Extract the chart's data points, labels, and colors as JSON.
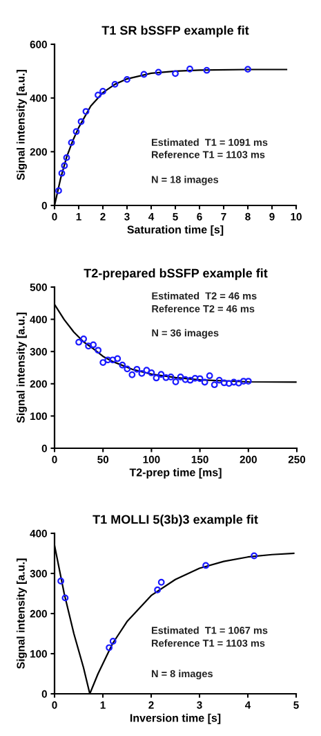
{
  "chart_data": [
    {
      "type": "scatter",
      "title": "T1 SR bSSFP example fit",
      "xlabel": "Saturation time [s]",
      "ylabel": "Signal intensity [a.u.]",
      "xlim": [
        0,
        10
      ],
      "ylim": [
        0,
        600
      ],
      "xticks": [
        0,
        1,
        2,
        3,
        4,
        5,
        6,
        7,
        8,
        9,
        10
      ],
      "yticks": [
        0,
        200,
        400,
        600
      ],
      "grid": false,
      "marker": "circle",
      "annotations": [
        "Estimated  T1 = 1091 ms",
        "Reference T1 = 1103 ms",
        "N = 18 images"
      ],
      "series": [
        {
          "color": "#1a1aff",
          "x": [
            0.17,
            0.3,
            0.41,
            0.5,
            0.7,
            0.9,
            1.1,
            1.3,
            1.8,
            2.0,
            2.5,
            3.0,
            3.7,
            4.3,
            5.0,
            5.6,
            6.3,
            8.0
          ],
          "values": [
            55,
            120,
            148,
            178,
            234,
            275,
            312,
            350,
            411,
            425,
            451,
            469,
            488,
            496,
            491,
            508,
            503,
            507
          ]
        },
        {
          "type": "line",
          "color": "#000000",
          "marker": "none",
          "line_style": "solid",
          "x": [
            0,
            0.25,
            0.5,
            0.75,
            1,
            1.5,
            2,
            2.5,
            3,
            4,
            5,
            6,
            8,
            9.6
          ],
          "values": [
            0,
            100,
            180,
            240,
            290,
            370,
            420,
            451,
            471,
            492,
            500,
            504,
            506,
            506
          ]
        }
      ]
    },
    {
      "type": "scatter",
      "title": "T2-prepared bSSFP example fit",
      "xlabel": "T2-prep time [ms]",
      "ylabel": "Signal intensity [a.u.]",
      "xlim": [
        0,
        250
      ],
      "ylim": [
        0,
        500
      ],
      "xticks": [
        0,
        50,
        100,
        150,
        200,
        250
      ],
      "yticks": [
        0,
        100,
        200,
        300,
        400,
        500
      ],
      "grid": false,
      "marker": "circle",
      "annotations": [
        "Estimated  T2 = 46 ms",
        "Reference T2 = 46 ms",
        "N = 36 images"
      ],
      "series": [
        {
          "color": "#1a1aff",
          "x": [
            25,
            30,
            35,
            40,
            45,
            50,
            55,
            60,
            65,
            70,
            75,
            80,
            85,
            90,
            95,
            100,
            105,
            110,
            115,
            120,
            125,
            130,
            135,
            140,
            145,
            150,
            155,
            160,
            165,
            170,
            175,
            180,
            185,
            190,
            195,
            200
          ],
          "values": [
            329,
            339,
            317,
            321,
            304,
            266,
            274,
            274,
            278,
            258,
            246,
            228,
            245,
            232,
            242,
            234,
            218,
            229,
            219,
            221,
            206,
            221,
            213,
            211,
            217,
            216,
            205,
            225,
            197,
            211,
            203,
            201,
            205,
            202,
            208,
            208
          ]
        },
        {
          "type": "line",
          "color": "#000000",
          "marker": "none",
          "line_style": "solid",
          "x": [
            0,
            10,
            20,
            30,
            40,
            50,
            60,
            80,
            100,
            125,
            150,
            200,
            249
          ],
          "values": [
            446,
            399,
            360,
            330,
            309,
            285,
            269,
            245,
            230,
            219,
            212,
            206,
            205
          ]
        }
      ]
    },
    {
      "type": "scatter",
      "title": "T1 MOLLI 5(3b)3 example fit",
      "xlabel": "Inversion time [s]",
      "ylabel": "Signal intensity [a.u.]",
      "xlim": [
        0,
        5
      ],
      "ylim": [
        0,
        400
      ],
      "xticks": [
        0,
        1,
        2,
        3,
        4,
        5
      ],
      "yticks": [
        0,
        100,
        200,
        300,
        400
      ],
      "grid": false,
      "marker": "circle",
      "annotations": [
        "Estimated  T1 = 1067 ms",
        "Reference T1 = 1103 ms",
        "N = 8 images"
      ],
      "series": [
        {
          "color": "#1a1aff",
          "x": [
            0.13,
            0.22,
            1.13,
            1.21,
            2.13,
            2.21,
            3.13,
            4.13
          ],
          "values": [
            281,
            239,
            115,
            131,
            259,
            278,
            320,
            344
          ]
        },
        {
          "type": "line",
          "color": "#000000",
          "marker": "none",
          "line_style": "solid",
          "x": [
            0,
            0.2,
            0.4,
            0.6,
            0.73,
            0.9,
            1.2,
            1.5,
            2,
            2.5,
            3,
            3.5,
            4,
            4.5,
            4.95
          ],
          "values": [
            370,
            250,
            150,
            65,
            0,
            50,
            125,
            180,
            245,
            285,
            313,
            330,
            341,
            347,
            350
          ]
        }
      ]
    }
  ]
}
